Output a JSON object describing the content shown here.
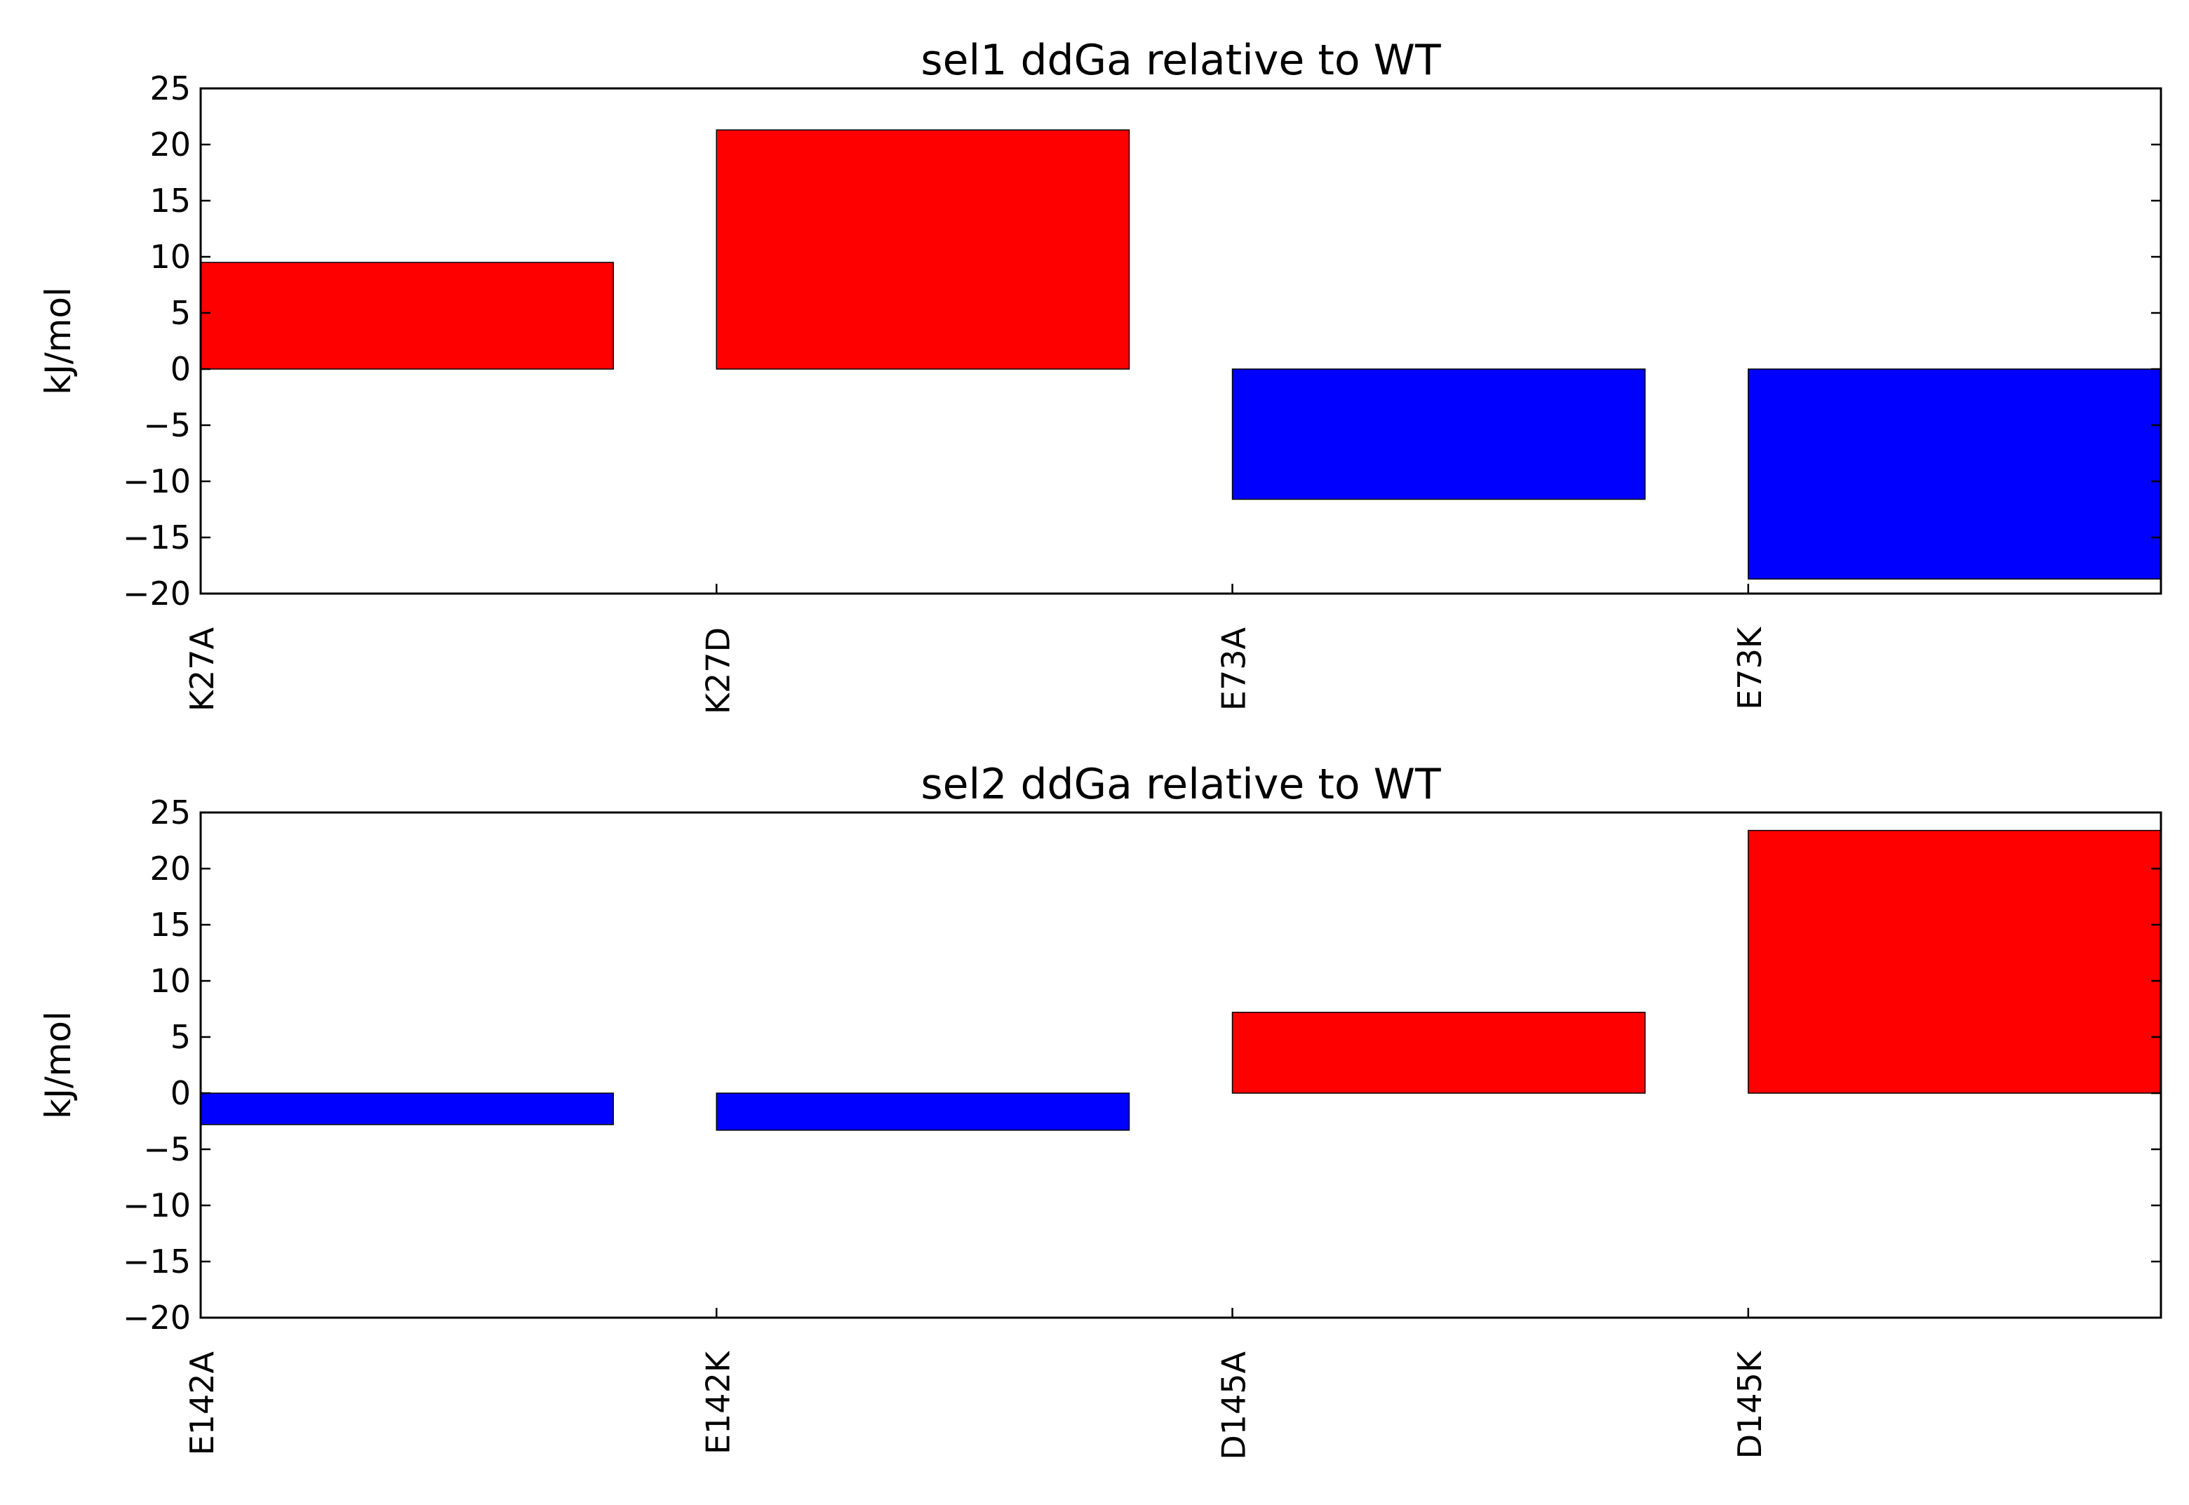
{
  "chart_data": [
    {
      "type": "bar",
      "title": "sel1 ddGa relative to WT",
      "ylabel": "kJ/mol",
      "xlabel": "",
      "categories": [
        "K27A",
        "K27D",
        "E73A",
        "E73K"
      ],
      "values": [
        9.5,
        21.3,
        -11.6,
        -18.7
      ],
      "ylim": [
        -20,
        25
      ],
      "yticks": [
        25,
        20,
        15,
        10,
        5,
        0,
        -5,
        -10,
        -15,
        -20
      ],
      "ytick_labels": [
        "25",
        "20",
        "15",
        "10",
        "5",
        "0",
        "−05",
        "−10",
        "−15",
        "−20"
      ],
      "grid": false,
      "positive_color": "#ff0000",
      "negative_color": "#0000ff"
    },
    {
      "type": "bar",
      "title": "sel2 ddGa relative to WT",
      "ylabel": "kJ/mol",
      "xlabel": "",
      "categories": [
        "E142A",
        "E142K",
        "D145A",
        "D145K"
      ],
      "values": [
        -2.8,
        -3.3,
        7.2,
        23.4
      ],
      "ylim": [
        -20,
        25
      ],
      "yticks": [
        25,
        20,
        15,
        10,
        5,
        0,
        -5,
        -10,
        -15,
        -20
      ],
      "ytick_labels": [
        "25",
        "20",
        "15",
        "10",
        "5",
        "0",
        "−5",
        "−10",
        "−15",
        "−20"
      ],
      "grid": false,
      "positive_color": "#ff0000",
      "negative_color": "#0000ff"
    }
  ]
}
